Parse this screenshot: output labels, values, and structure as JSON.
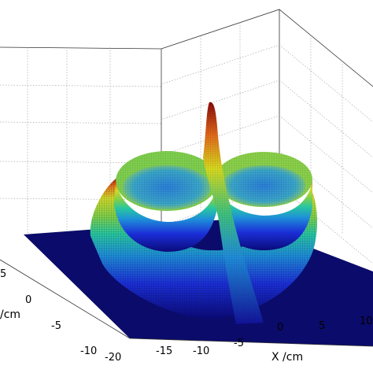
{
  "chart_data": {
    "type": "surface3d",
    "title": "",
    "xlabel": "X /cm",
    "ylabel": "/cm",
    "zlabel": "",
    "x_ticks": [
      "-15",
      "-10",
      "-5",
      "0",
      "5",
      "10"
    ],
    "y_ticks": [
      "-10",
      "-5",
      "0",
      "5"
    ],
    "y_ticks_partial": [
      "-20"
    ],
    "xlim": [
      -20,
      10
    ],
    "ylim": [
      -10,
      10
    ],
    "grid": true,
    "colormap": "jet",
    "surface": {
      "description_points": [
        {
          "name": "central-spike-peak",
          "x": -4,
          "y": 0,
          "z": 1.0
        },
        {
          "name": "left-ring-crater-rim",
          "x": -9,
          "y": 0,
          "z": 0.55
        },
        {
          "name": "right-ring-crater-rim",
          "x": 3,
          "y": 0,
          "z": 0.55
        },
        {
          "name": "baseline-floor",
          "x": 0,
          "y": 0,
          "z": 0.0
        }
      ]
    }
  }
}
